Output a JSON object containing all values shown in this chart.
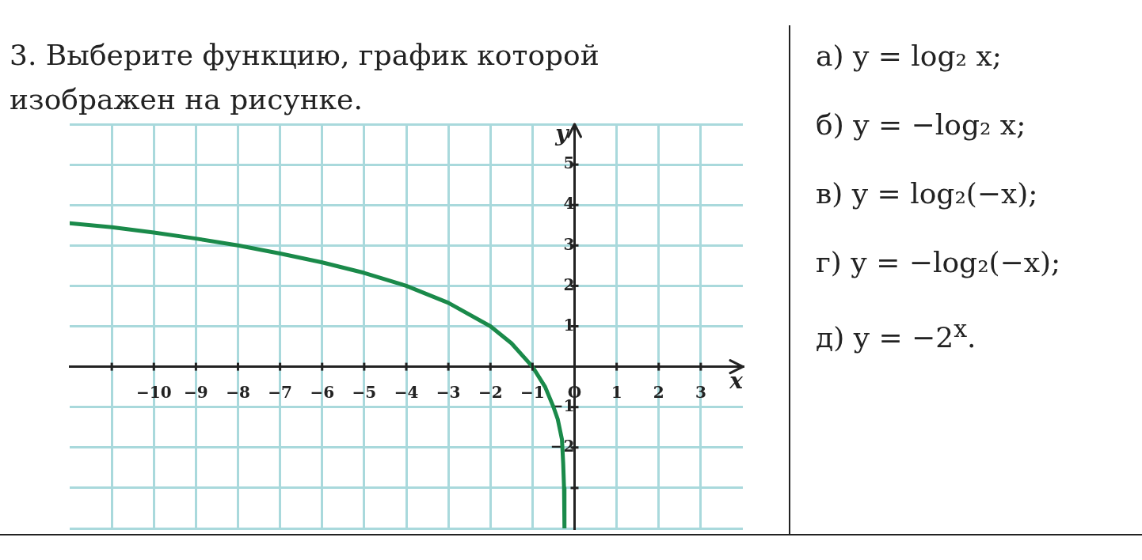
{
  "chart_data": {
    "type": "line",
    "title": "3.  Выберите функцию, график которой изображен на рисунке.",
    "xlabel": "x",
    "ylabel": "y",
    "series": [
      {
        "color": "#1a8a4a",
        "x": [
          -12,
          -11,
          -10,
          -9,
          -8,
          -7,
          -6,
          -5,
          -4,
          -3,
          -2,
          -1.5,
          -1,
          -0.7,
          -0.5,
          -0.4,
          -0.3,
          -0.27,
          -0.25,
          -0.24
        ],
        "values": [
          3.55,
          3.45,
          3.32,
          3.17,
          3.0,
          2.8,
          2.58,
          2.32,
          2.0,
          1.58,
          1.0,
          0.58,
          0,
          -0.5,
          -1,
          -1.3,
          -1.8,
          -2.4,
          -3.0,
          -4.0
        ]
      }
    ],
    "xlim": [
      -12,
      4
    ],
    "ylim": [
      -4,
      6
    ],
    "xticks": [
      {
        "value": -11,
        "label": null
      },
      -10,
      -9,
      -8,
      -7,
      -6,
      -5,
      -4,
      -3,
      -2,
      -1,
      {
        "value": 0,
        "label": "O"
      },
      1,
      2,
      3
    ],
    "yticks": [
      {
        "value": -4,
        "label": null
      },
      {
        "value": -3,
        "label": null
      },
      -2,
      -1,
      {
        "value": 0,
        "label": null
      },
      1,
      2,
      3,
      4,
      5,
      {
        "value": 6,
        "label": null
      }
    ],
    "grid": true,
    "marker": "none",
    "line_style": "solid",
    "annotations": [
      "а)  y = log₂ x;",
      "б)  y = −log₂ x;",
      "в)  y = log₂(−x);",
      "г)  y = −log₂(−x);",
      "д)  y = −2$^{x}$."
    ]
  }
}
